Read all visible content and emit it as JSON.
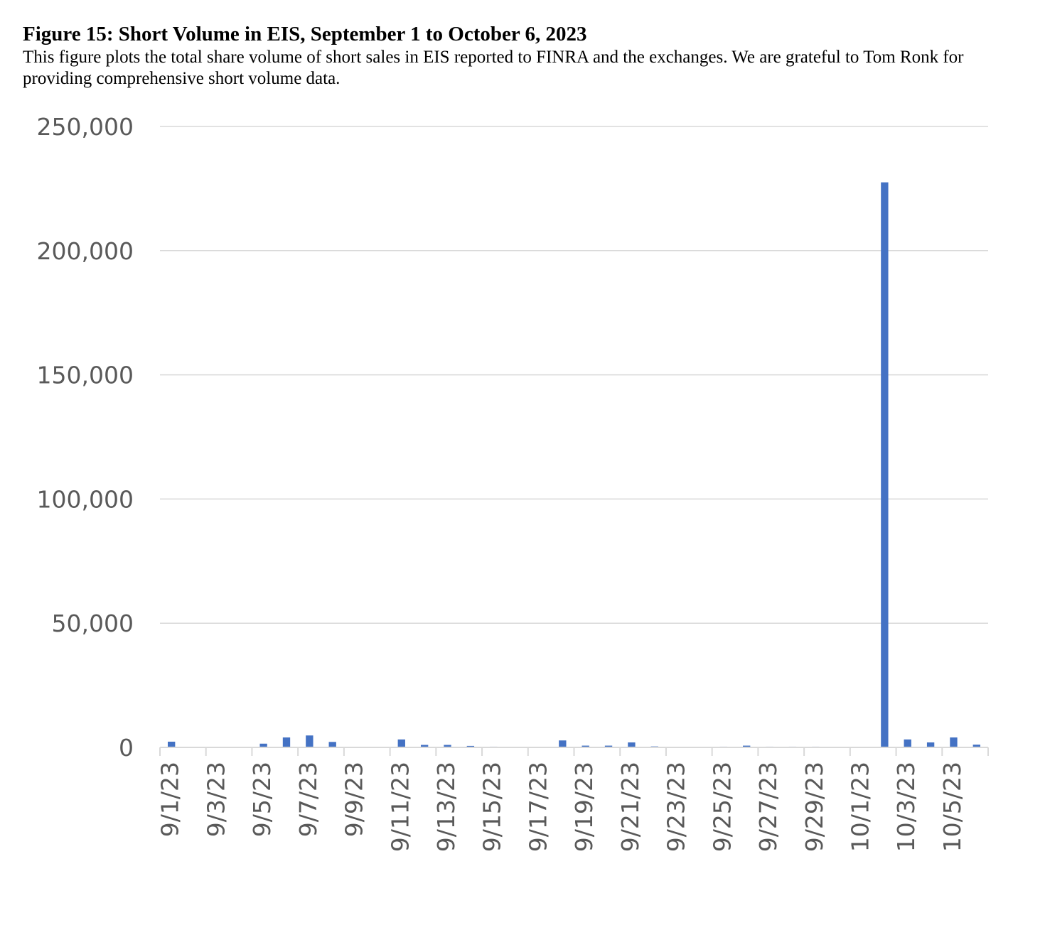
{
  "figure": {
    "title": "Figure 15: Short Volume in EIS, September 1 to October 6, 2023",
    "description": "This figure plots the total share volume of short sales in EIS reported to FINRA and the exchanges.  We are grateful to Tom Ronk for providing comprehensive short volume data."
  },
  "chart_data": {
    "type": "bar",
    "title": "",
    "xlabel": "",
    "ylabel": "",
    "ylim": [
      0,
      250000
    ],
    "yticks": [
      "0",
      "50,000",
      "100,000",
      "150,000",
      "200,000",
      "250,000"
    ],
    "grid": true,
    "bar_color": "#4472C4",
    "categories": [
      "9/1/23",
      "9/2/23",
      "9/3/23",
      "9/4/23",
      "9/5/23",
      "9/6/23",
      "9/7/23",
      "9/8/23",
      "9/9/23",
      "9/10/23",
      "9/11/23",
      "9/12/23",
      "9/13/23",
      "9/14/23",
      "9/15/23",
      "9/16/23",
      "9/17/23",
      "9/18/23",
      "9/19/23",
      "9/20/23",
      "9/21/23",
      "9/22/23",
      "9/23/23",
      "9/24/23",
      "9/25/23",
      "9/26/23",
      "9/27/23",
      "9/28/23",
      "9/29/23",
      "9/30/23",
      "10/1/23",
      "10/2/23",
      "10/3/23",
      "10/4/23",
      "10/5/23",
      "10/6/23"
    ],
    "tick_labels": [
      "9/1/23",
      "9/3/23",
      "9/5/23",
      "9/7/23",
      "9/9/23",
      "9/11/23",
      "9/13/23",
      "9/15/23",
      "9/17/23",
      "9/19/23",
      "9/21/23",
      "9/23/23",
      "9/25/23",
      "9/27/23",
      "9/29/23",
      "10/1/23",
      "10/3/23",
      "10/5/23"
    ],
    "values": [
      2300,
      0,
      0,
      0,
      1500,
      4000,
      4800,
      2200,
      0,
      0,
      3200,
      1000,
      1000,
      600,
      300,
      0,
      0,
      2800,
      700,
      700,
      2000,
      400,
      0,
      0,
      300,
      700,
      300,
      300,
      300,
      0,
      0,
      227500,
      3200,
      2000,
      4000,
      1100
    ]
  }
}
